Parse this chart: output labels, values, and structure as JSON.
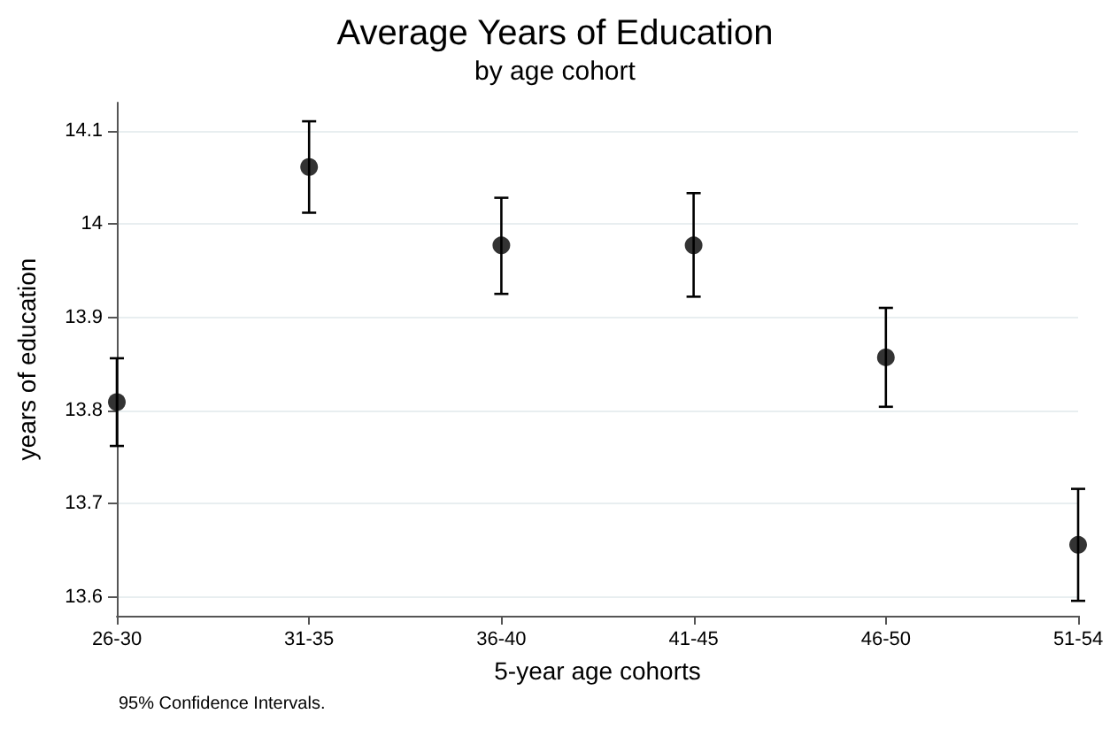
{
  "chart_data": {
    "type": "scatter",
    "title": "Average Years of Education",
    "subtitle": "by age cohort",
    "xlabel": "5-year age cohorts",
    "ylabel": "years of education",
    "categories": [
      "26-30",
      "31-35",
      "36-40",
      "41-45",
      "46-50",
      "51-54"
    ],
    "values": [
      13.809,
      14.061,
      13.977,
      13.977,
      13.857,
      13.656
    ],
    "errors": [
      [
        13.762,
        13.856
      ],
      [
        14.012,
        14.11
      ],
      [
        13.925,
        14.028
      ],
      [
        13.922,
        14.033
      ],
      [
        13.804,
        13.91
      ],
      [
        13.596,
        13.716
      ]
    ],
    "color": "#000000",
    "marker": "circle",
    "grid": "y",
    "ylim": [
      13.58,
      14.13
    ],
    "yticks": [
      13.6,
      13.7,
      13.8,
      13.9,
      14,
      14.1
    ],
    "annotations": [
      "95% Confidence Intervals."
    ]
  }
}
